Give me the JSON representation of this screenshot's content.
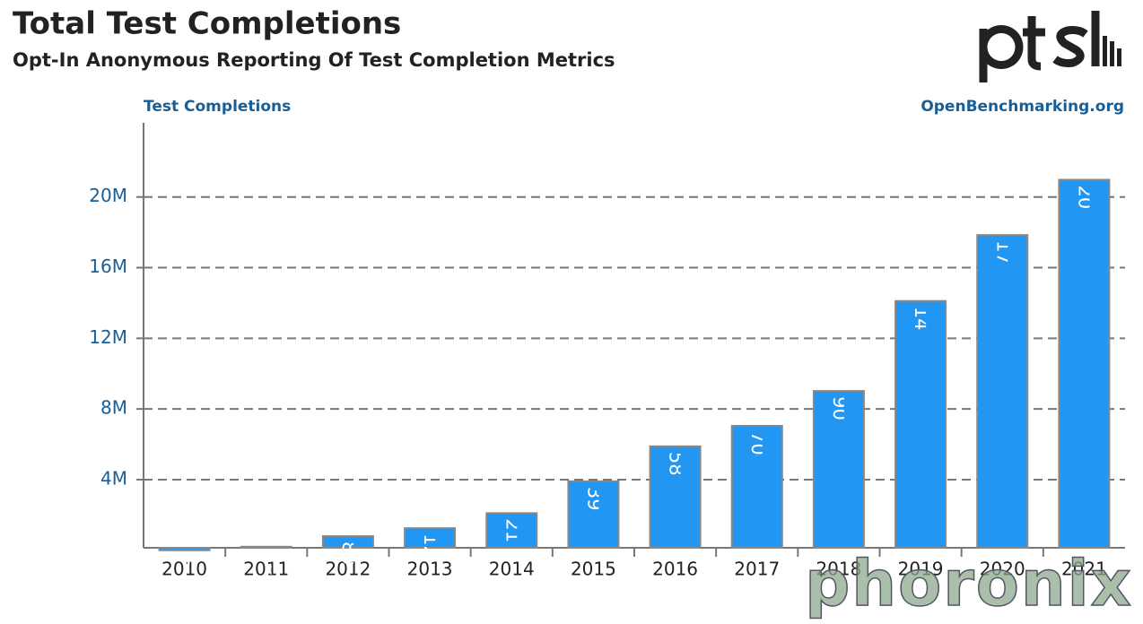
{
  "chart_data": {
    "type": "bar",
    "title": "Total Test Completions",
    "subtitle": "Opt-In Anonymous Reporting Of Test Completion Metrics",
    "y_label": "Test Completions",
    "source": "OpenBenchmarking.org",
    "watermark": "phoronix",
    "categories": [
      "2010",
      "2011",
      "2012",
      "2013",
      "2014",
      "2015",
      "2016",
      "2017",
      "2018",
      "2019",
      "2020",
      "2021"
    ],
    "values": [
      0,
      200000,
      800000,
      1250000,
      2100000,
      3903100,
      5883540,
      7042923,
      9017064,
      14111897,
      17846404,
      20975899
    ],
    "color": "#2196f3",
    "ylim": [
      0,
      24200000
    ],
    "yticks": [
      {
        "value": 4000000,
        "label": "4M"
      },
      {
        "value": 8000000,
        "label": "8M"
      },
      {
        "value": 12000000,
        "label": "12M"
      },
      {
        "value": 16000000,
        "label": "16M"
      },
      {
        "value": 20000000,
        "label": "20M"
      }
    ],
    "grid": true
  }
}
